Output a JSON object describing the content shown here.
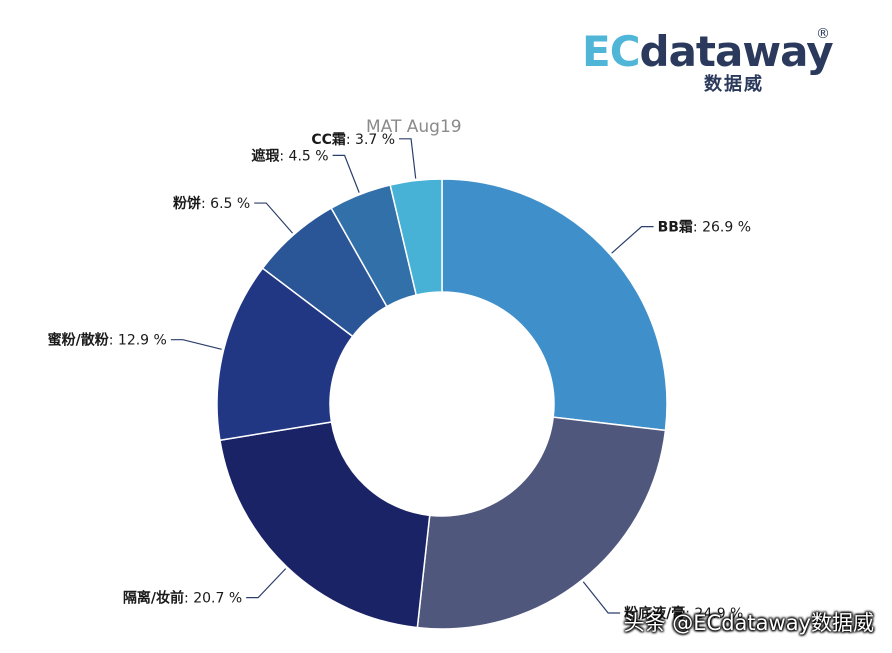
{
  "logo": {
    "brand_ec": "EC",
    "brand_rest": "dataway",
    "registered": "®",
    "chinese": "数据威"
  },
  "watermark": "头条 @ECdataway数据威",
  "colors": {
    "background": "#ffffff",
    "leader_line": "#2b3f6b",
    "title": "#8a8a8a"
  },
  "chart_data": {
    "type": "pie",
    "variant": "donut",
    "title": "MAT Aug19",
    "label_format": "{name}: {value} %",
    "slices": [
      {
        "name": "BB霜",
        "value": 26.9,
        "color": "#3f8fca"
      },
      {
        "name": "粉底液/膏",
        "value": 24.9,
        "color": "#4f587c"
      },
      {
        "name": "隔离/妆前",
        "value": 20.7,
        "color": "#1a2366"
      },
      {
        "name": "蜜粉/散粉",
        "value": 12.9,
        "color": "#213784"
      },
      {
        "name": "粉饼",
        "value": 6.5,
        "color": "#2a5597"
      },
      {
        "name": "遮瑕",
        "value": 4.5,
        "color": "#3270aa"
      },
      {
        "name": "CC霜",
        "value": 3.7,
        "color": "#48b1d6"
      }
    ]
  }
}
